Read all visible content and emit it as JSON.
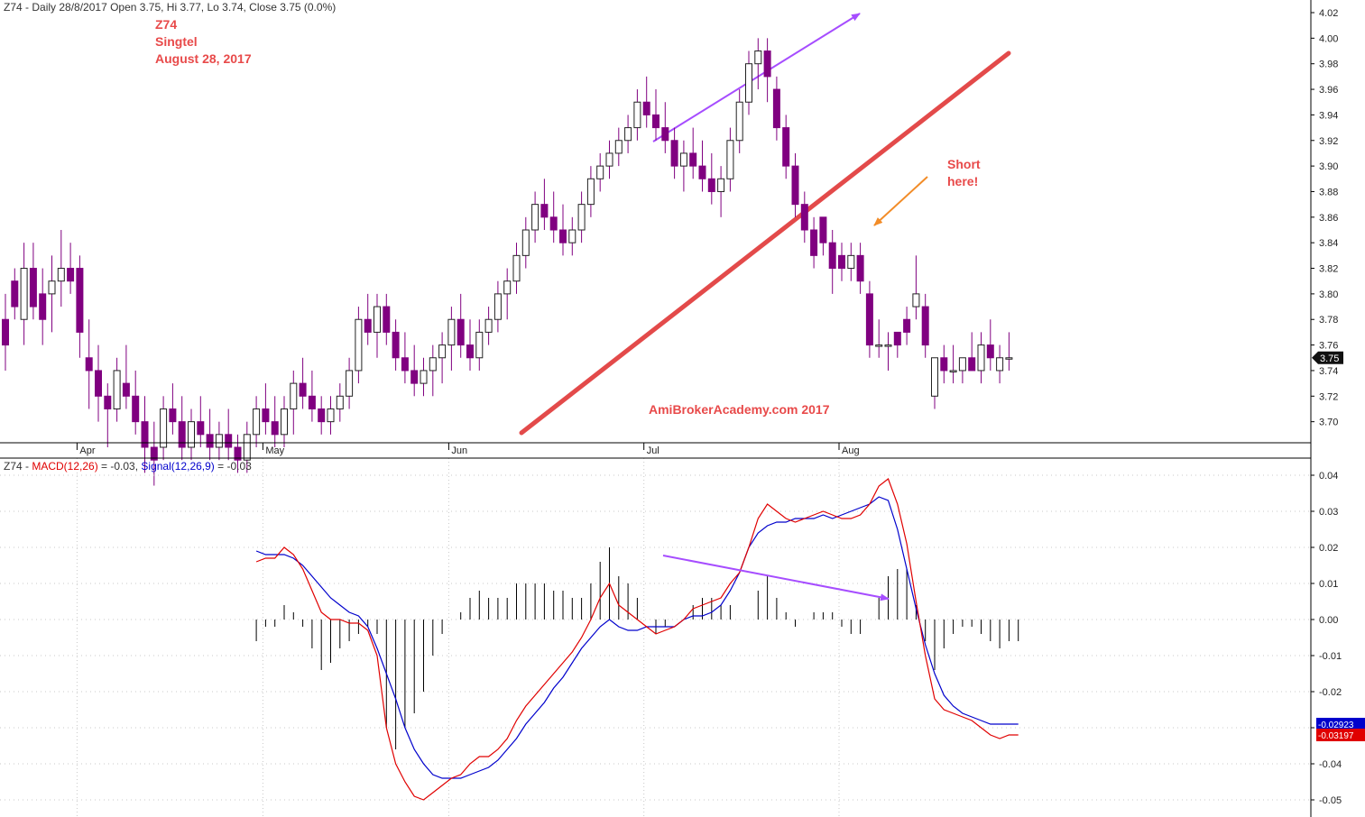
{
  "colors": {
    "bear_body": "#800080",
    "bull_body": "#ffffff",
    "candle_outline": "#222222",
    "wick": "#800080",
    "trendline": "#e34a4a",
    "annotation_red": "#e84a4a",
    "divergence_arrow": "#a64dff",
    "short_arrow": "#f28c28",
    "macd": "#e00000",
    "signal": "#0000cc",
    "histogram": "#000000",
    "axis": "#000000",
    "grid": "#c8c8c8"
  },
  "chart_data": [
    {
      "type": "candlestick",
      "title": "Z74 - Daily 28/8/2017 Open 3.75, Hi 3.77, Lo 3.74, Close 3.75 (0.0%)",
      "title_parts": {
        "symbol": "Z74",
        "rest": " - Daily 28/8/2017 Open 3.75, Hi 3.77, Lo 3.74, Close 3.75 (0.0%)"
      },
      "annotations": {
        "ticker": "Z74",
        "name": "Singtel",
        "date": "August 28, 2017",
        "short_1": "Short",
        "short_2": "here!",
        "watermark": "AmiBrokerAcademy.com  2017"
      },
      "x_tick_labels": [
        "Apr",
        "May",
        "Jun",
        "Jul",
        "Aug"
      ],
      "x_tick_bars": [
        8,
        28,
        48,
        69,
        90
      ],
      "ylim": [
        3.68,
        4.02
      ],
      "y_ticks": [
        "3.70",
        "3.72",
        "3.74",
        "3.76",
        "3.78",
        "3.80",
        "3.82",
        "3.84",
        "3.86",
        "3.88",
        "3.90",
        "3.92",
        "3.94",
        "3.96",
        "3.98",
        "4.00",
        "4.02"
      ],
      "last_value_label": "3.75",
      "grid": false,
      "ohlc": [
        [
          3.78,
          3.8,
          3.74,
          3.76
        ],
        [
          3.81,
          3.82,
          3.78,
          3.79
        ],
        [
          3.78,
          3.84,
          3.76,
          3.82
        ],
        [
          3.82,
          3.84,
          3.78,
          3.79
        ],
        [
          3.8,
          3.82,
          3.76,
          3.78
        ],
        [
          3.8,
          3.83,
          3.77,
          3.81
        ],
        [
          3.81,
          3.85,
          3.79,
          3.82
        ],
        [
          3.82,
          3.84,
          3.8,
          3.81
        ],
        [
          3.82,
          3.83,
          3.75,
          3.77
        ],
        [
          3.75,
          3.78,
          3.71,
          3.74
        ],
        [
          3.74,
          3.76,
          3.7,
          3.72
        ],
        [
          3.72,
          3.73,
          3.68,
          3.71
        ],
        [
          3.71,
          3.75,
          3.7,
          3.74
        ],
        [
          3.73,
          3.76,
          3.71,
          3.72
        ],
        [
          3.72,
          3.74,
          3.69,
          3.7
        ],
        [
          3.7,
          3.72,
          3.66,
          3.68
        ],
        [
          3.68,
          3.7,
          3.65,
          3.67
        ],
        [
          3.68,
          3.72,
          3.67,
          3.71
        ],
        [
          3.71,
          3.73,
          3.69,
          3.7
        ],
        [
          3.7,
          3.72,
          3.67,
          3.68
        ],
        [
          3.68,
          3.71,
          3.67,
          3.7
        ],
        [
          3.7,
          3.72,
          3.68,
          3.69
        ],
        [
          3.69,
          3.71,
          3.67,
          3.68
        ],
        [
          3.68,
          3.7,
          3.67,
          3.69
        ],
        [
          3.69,
          3.71,
          3.67,
          3.68
        ],
        [
          3.68,
          3.69,
          3.66,
          3.67
        ],
        [
          3.67,
          3.7,
          3.66,
          3.69
        ],
        [
          3.69,
          3.72,
          3.68,
          3.71
        ],
        [
          3.71,
          3.73,
          3.69,
          3.7
        ],
        [
          3.7,
          3.72,
          3.68,
          3.69
        ],
        [
          3.69,
          3.72,
          3.68,
          3.71
        ],
        [
          3.71,
          3.74,
          3.69,
          3.73
        ],
        [
          3.73,
          3.75,
          3.71,
          3.72
        ],
        [
          3.72,
          3.74,
          3.7,
          3.71
        ],
        [
          3.71,
          3.72,
          3.69,
          3.7
        ],
        [
          3.7,
          3.72,
          3.69,
          3.71
        ],
        [
          3.71,
          3.73,
          3.7,
          3.72
        ],
        [
          3.72,
          3.75,
          3.71,
          3.74
        ],
        [
          3.74,
          3.79,
          3.73,
          3.78
        ],
        [
          3.78,
          3.8,
          3.76,
          3.77
        ],
        [
          3.77,
          3.8,
          3.75,
          3.79
        ],
        [
          3.79,
          3.8,
          3.76,
          3.77
        ],
        [
          3.77,
          3.78,
          3.74,
          3.75
        ],
        [
          3.75,
          3.77,
          3.73,
          3.74
        ],
        [
          3.74,
          3.76,
          3.72,
          3.73
        ],
        [
          3.73,
          3.75,
          3.72,
          3.74
        ],
        [
          3.74,
          3.76,
          3.72,
          3.75
        ],
        [
          3.75,
          3.77,
          3.73,
          3.76
        ],
        [
          3.76,
          3.79,
          3.74,
          3.78
        ],
        [
          3.78,
          3.8,
          3.75,
          3.76
        ],
        [
          3.76,
          3.78,
          3.74,
          3.75
        ],
        [
          3.75,
          3.78,
          3.74,
          3.77
        ],
        [
          3.77,
          3.79,
          3.76,
          3.78
        ],
        [
          3.78,
          3.81,
          3.77,
          3.8
        ],
        [
          3.8,
          3.82,
          3.78,
          3.81
        ],
        [
          3.81,
          3.84,
          3.8,
          3.83
        ],
        [
          3.83,
          3.86,
          3.82,
          3.85
        ],
        [
          3.85,
          3.88,
          3.84,
          3.87
        ],
        [
          3.87,
          3.89,
          3.85,
          3.86
        ],
        [
          3.86,
          3.88,
          3.84,
          3.85
        ],
        [
          3.85,
          3.87,
          3.83,
          3.84
        ],
        [
          3.84,
          3.86,
          3.83,
          3.85
        ],
        [
          3.85,
          3.88,
          3.84,
          3.87
        ],
        [
          3.87,
          3.9,
          3.86,
          3.89
        ],
        [
          3.89,
          3.91,
          3.88,
          3.9
        ],
        [
          3.9,
          3.92,
          3.89,
          3.91
        ],
        [
          3.91,
          3.93,
          3.9,
          3.92
        ],
        [
          3.92,
          3.94,
          3.91,
          3.93
        ],
        [
          3.93,
          3.96,
          3.92,
          3.95
        ],
        [
          3.95,
          3.97,
          3.93,
          3.94
        ],
        [
          3.94,
          3.96,
          3.92,
          3.93
        ],
        [
          3.93,
          3.95,
          3.91,
          3.92
        ],
        [
          3.92,
          3.93,
          3.89,
          3.9
        ],
        [
          3.9,
          3.92,
          3.88,
          3.91
        ],
        [
          3.91,
          3.93,
          3.89,
          3.9
        ],
        [
          3.9,
          3.92,
          3.88,
          3.89
        ],
        [
          3.89,
          3.91,
          3.87,
          3.88
        ],
        [
          3.88,
          3.9,
          3.86,
          3.89
        ],
        [
          3.89,
          3.93,
          3.88,
          3.92
        ],
        [
          3.92,
          3.96,
          3.91,
          3.95
        ],
        [
          3.95,
          3.99,
          3.94,
          3.98
        ],
        [
          3.98,
          4.0,
          3.96,
          3.99
        ],
        [
          3.99,
          4.0,
          3.95,
          3.97
        ],
        [
          3.96,
          3.97,
          3.92,
          3.93
        ],
        [
          3.93,
          3.94,
          3.89,
          3.9
        ],
        [
          3.9,
          3.91,
          3.86,
          3.87
        ],
        [
          3.87,
          3.88,
          3.84,
          3.85
        ],
        [
          3.85,
          3.86,
          3.82,
          3.83
        ],
        [
          3.86,
          3.86,
          3.83,
          3.84
        ],
        [
          3.84,
          3.85,
          3.8,
          3.82
        ],
        [
          3.83,
          3.84,
          3.81,
          3.82
        ],
        [
          3.82,
          3.84,
          3.81,
          3.83
        ],
        [
          3.83,
          3.84,
          3.8,
          3.81
        ],
        [
          3.8,
          3.81,
          3.75,
          3.76
        ],
        [
          3.76,
          3.78,
          3.75,
          3.76
        ],
        [
          3.76,
          3.77,
          3.74,
          3.76
        ],
        [
          3.77,
          3.77,
          3.75,
          3.76
        ],
        [
          3.78,
          3.79,
          3.76,
          3.77
        ],
        [
          3.79,
          3.83,
          3.78,
          3.8
        ],
        [
          3.79,
          3.8,
          3.75,
          3.76
        ],
        [
          3.72,
          3.75,
          3.71,
          3.75
        ],
        [
          3.75,
          3.76,
          3.73,
          3.74
        ],
        [
          3.74,
          3.76,
          3.73,
          3.74
        ],
        [
          3.74,
          3.75,
          3.73,
          3.75
        ],
        [
          3.75,
          3.77,
          3.74,
          3.74
        ],
        [
          3.74,
          3.77,
          3.73,
          3.76
        ],
        [
          3.76,
          3.78,
          3.74,
          3.75
        ],
        [
          3.74,
          3.76,
          3.73,
          3.75
        ],
        [
          3.75,
          3.77,
          3.74,
          3.75
        ]
      ]
    },
    {
      "type": "line",
      "title": "Z74 - MACD(12,26) = -0.03, Signal(12,26,9) = -0.03",
      "title_parts": {
        "prefix": "Z74 - ",
        "macd_label": "MACD(12,26)",
        "macd_value": " = -0.03, ",
        "signal_label": "Signal(12,26,9)",
        "signal_value": " = -0.03"
      },
      "ylim": [
        -0.052,
        0.042
      ],
      "y_ticks": [
        "0.04",
        "0.03",
        "0.02",
        "0.01",
        "0.00",
        "-0.01",
        "-0.02",
        "-0.03",
        "-0.04",
        "-0.05"
      ],
      "signal_last_label": "-0.02923",
      "macd_last_label": "-0.03197",
      "series": [
        {
          "name": "MACD(12,26)",
          "values": [
            0.016,
            0.017,
            0.017,
            0.02,
            0.018,
            0.014,
            0.008,
            0.002,
            0.0,
            0.0,
            -0.001,
            -0.001,
            -0.003,
            -0.01,
            -0.03,
            -0.04,
            -0.045,
            -0.049,
            -0.05,
            -0.048,
            -0.046,
            -0.044,
            -0.043,
            -0.04,
            -0.038,
            -0.038,
            -0.036,
            -0.033,
            -0.028,
            -0.024,
            -0.021,
            -0.018,
            -0.015,
            -0.012,
            -0.009,
            -0.005,
            0.0,
            0.006,
            0.01,
            0.004,
            0.002,
            0.0,
            -0.002,
            -0.004,
            -0.003,
            -0.002,
            0.0,
            0.003,
            0.004,
            0.005,
            0.006,
            0.01,
            0.013,
            0.02,
            0.028,
            0.032,
            0.03,
            0.028,
            0.027,
            0.028,
            0.029,
            0.03,
            0.029,
            0.028,
            0.028,
            0.029,
            0.032,
            0.037,
            0.039,
            0.032,
            0.021,
            0.005,
            -0.01,
            -0.022,
            -0.025,
            -0.026,
            -0.027,
            -0.028,
            -0.03,
            -0.032,
            -0.033,
            -0.032,
            -0.032
          ]
        },
        {
          "name": "Signal(12,26,9)",
          "values": [
            0.019,
            0.018,
            0.018,
            0.018,
            0.017,
            0.015,
            0.012,
            0.009,
            0.006,
            0.004,
            0.002,
            0.001,
            -0.002,
            -0.008,
            -0.015,
            -0.022,
            -0.03,
            -0.036,
            -0.04,
            -0.043,
            -0.044,
            -0.044,
            -0.044,
            -0.043,
            -0.042,
            -0.041,
            -0.039,
            -0.036,
            -0.033,
            -0.029,
            -0.026,
            -0.023,
            -0.019,
            -0.016,
            -0.012,
            -0.008,
            -0.005,
            -0.002,
            0.0,
            -0.002,
            -0.003,
            -0.003,
            -0.002,
            -0.002,
            -0.002,
            -0.002,
            0.0,
            0.001,
            0.001,
            0.002,
            0.004,
            0.008,
            0.013,
            0.02,
            0.024,
            0.026,
            0.027,
            0.027,
            0.028,
            0.028,
            0.028,
            0.029,
            0.028,
            0.029,
            0.03,
            0.031,
            0.032,
            0.034,
            0.033,
            0.025,
            0.014,
            0.003,
            -0.007,
            -0.015,
            -0.021,
            -0.024,
            -0.026,
            -0.027,
            -0.028,
            -0.029,
            -0.029,
            -0.029,
            -0.029
          ]
        }
      ]
    }
  ]
}
